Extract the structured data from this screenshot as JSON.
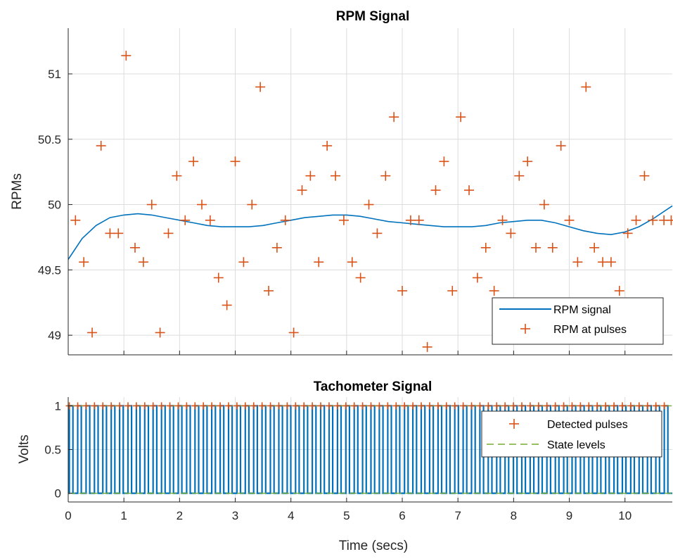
{
  "chart_data": [
    {
      "type": "line",
      "title": "RPM Signal",
      "xlabel": "",
      "ylabel": "RPMs",
      "xlim": [
        0,
        10.85
      ],
      "ylim": [
        48.85,
        51.35
      ],
      "x_ticks": [
        0,
        1,
        2,
        3,
        4,
        5,
        6,
        7,
        8,
        9,
        10
      ],
      "y_ticks": [
        49,
        49.5,
        50,
        50.5,
        51
      ],
      "y_tick_labels": [
        "49",
        "49.5",
        "50",
        "50.5",
        "51"
      ],
      "grid": true,
      "legend_position": "bottom-right",
      "colors": {
        "signal": "#0072BD",
        "pulses": "#D95319"
      },
      "series": [
        {
          "name": "RPM signal",
          "style": "line",
          "x": [
            0,
            0.25,
            0.5,
            0.75,
            1.0,
            1.25,
            1.5,
            1.75,
            2.0,
            2.25,
            2.5,
            2.75,
            3.0,
            3.25,
            3.5,
            3.75,
            4.0,
            4.25,
            4.5,
            4.75,
            5.0,
            5.25,
            5.5,
            5.75,
            6.0,
            6.25,
            6.5,
            6.75,
            7.0,
            7.25,
            7.5,
            7.75,
            8.0,
            8.25,
            8.5,
            8.75,
            9.0,
            9.25,
            9.5,
            9.75,
            10.0,
            10.25,
            10.5,
            10.85
          ],
          "y": [
            49.58,
            49.74,
            49.84,
            49.9,
            49.92,
            49.93,
            49.92,
            49.9,
            49.88,
            49.86,
            49.84,
            49.83,
            49.83,
            49.83,
            49.84,
            49.86,
            49.88,
            49.9,
            49.91,
            49.92,
            49.92,
            49.91,
            49.89,
            49.87,
            49.86,
            49.85,
            49.84,
            49.83,
            49.83,
            49.83,
            49.84,
            49.86,
            49.87,
            49.88,
            49.88,
            49.86,
            49.83,
            49.8,
            49.78,
            49.77,
            49.79,
            49.83,
            49.89,
            49.99
          ]
        },
        {
          "name": "RPM at pulses",
          "style": "plus",
          "x": [
            0.13,
            0.28,
            0.43,
            0.59,
            0.75,
            0.9,
            1.04,
            1.2,
            1.35,
            1.5,
            1.65,
            1.8,
            1.95,
            2.1,
            2.25,
            2.4,
            2.55,
            2.7,
            2.85,
            3.0,
            3.15,
            3.3,
            3.45,
            3.6,
            3.75,
            3.9,
            4.05,
            4.2,
            4.35,
            4.5,
            4.65,
            4.8,
            4.95,
            5.1,
            5.25,
            5.4,
            5.55,
            5.7,
            5.85,
            6.0,
            6.15,
            6.3,
            6.45,
            6.6,
            6.75,
            6.9,
            7.05,
            7.2,
            7.35,
            7.5,
            7.65,
            7.8,
            7.95,
            8.1,
            8.25,
            8.4,
            8.55,
            8.7,
            8.85,
            9.0,
            9.15,
            9.3,
            9.45,
            9.6,
            9.75,
            9.9,
            10.05,
            10.2,
            10.35,
            10.5,
            10.7,
            10.83
          ],
          "y": [
            49.88,
            49.56,
            49.02,
            50.45,
            49.78,
            49.78,
            51.14,
            49.67,
            49.56,
            50.0,
            49.02,
            49.78,
            50.22,
            49.88,
            50.33,
            50.0,
            49.88,
            49.44,
            49.23,
            50.33,
            49.56,
            50.0,
            50.9,
            49.34,
            49.67,
            49.88,
            49.02,
            50.11,
            50.22,
            49.56,
            50.45,
            50.22,
            49.88,
            49.56,
            49.44,
            50.0,
            49.78,
            50.22,
            50.67,
            49.34,
            49.88,
            49.88,
            48.91,
            50.11,
            50.33,
            49.34,
            50.67,
            50.11,
            49.44,
            49.67,
            49.34,
            49.88,
            49.78,
            50.22,
            50.33,
            49.67,
            50.0,
            49.67,
            50.45,
            49.88,
            49.56,
            50.9,
            49.67,
            49.56,
            49.56,
            49.34,
            49.78,
            49.88,
            50.22,
            49.88,
            49.88,
            49.88
          ]
        }
      ]
    },
    {
      "type": "line",
      "title": "Tachometer Signal",
      "xlabel": "Time (secs)",
      "ylabel": "Volts",
      "xlim": [
        0,
        10.85
      ],
      "ylim": [
        -0.1,
        1.1
      ],
      "x_ticks": [
        0,
        1,
        2,
        3,
        4,
        5,
        6,
        7,
        8,
        9,
        10
      ],
      "y_ticks": [
        0,
        0.5,
        1
      ],
      "y_tick_labels": [
        "0",
        "0.5",
        "1"
      ],
      "grid": true,
      "legend_position": "top-right",
      "colors": {
        "signal": "#0072BD",
        "pulses": "#D95319",
        "levels": "#77AC30"
      },
      "pulse_period_secs": 0.1505,
      "pulse_count": 72,
      "series": [
        {
          "name": "",
          "style": "square-wave",
          "low": 0,
          "high": 1
        },
        {
          "name": "Detected pulses",
          "style": "plus",
          "y": 1
        },
        {
          "name": "State levels",
          "style": "dashed",
          "values": [
            0,
            1
          ]
        }
      ]
    }
  ]
}
